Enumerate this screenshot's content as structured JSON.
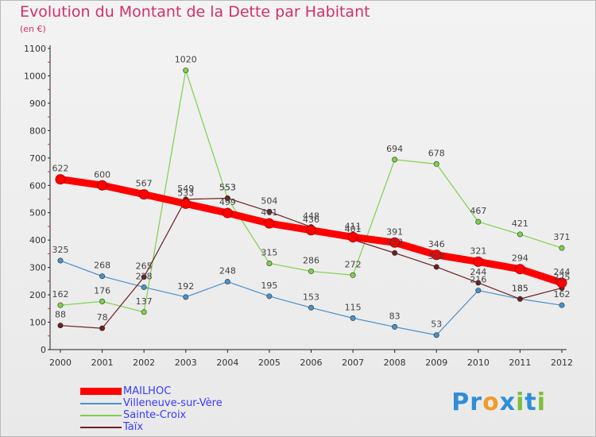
{
  "title": "Evolution du Montant de la Dette par Habitant",
  "unit_label": "(en €)",
  "brand": "Proxiti",
  "chart_data": {
    "type": "line",
    "title": "Evolution du Montant de la Dette par Habitant",
    "subtitle": "(en €)",
    "xlabel": "",
    "ylabel": "",
    "x": [
      "2000",
      "2001",
      "2002",
      "2003",
      "2004",
      "2005",
      "2006",
      "2007",
      "2008",
      "2009",
      "2010",
      "2011",
      "2012"
    ],
    "ylim": [
      0,
      1100
    ],
    "yticks": [
      0,
      100,
      200,
      300,
      400,
      500,
      600,
      700,
      800,
      900,
      1000,
      1100
    ],
    "grid": false,
    "legend_position": "bottom-left",
    "series": [
      {
        "name": "MAILHOC",
        "color": "#ff0000",
        "values": [
          622,
          600,
          567,
          533,
          499,
          461,
          436,
          411,
          391,
          346,
          321,
          294,
          244
        ]
      },
      {
        "name": "Villeneuve-sur-Vère",
        "color": "#4a90c8",
        "values": [
          325,
          268,
          228,
          192,
          248,
          195,
          153,
          115,
          83,
          53,
          216,
          185,
          162
        ]
      },
      {
        "name": "Sainte-Croix",
        "color": "#7fd04a",
        "values": [
          162,
          176,
          137,
          1020,
          553,
          315,
          286,
          272,
          694,
          678,
          467,
          421,
          371
        ]
      },
      {
        "name": "Taïx",
        "color": "#6b1f22",
        "values": [
          88,
          78,
          265,
          549,
          553,
          504,
          448,
          401,
          353,
          302,
          244,
          185,
          225
        ]
      }
    ]
  }
}
